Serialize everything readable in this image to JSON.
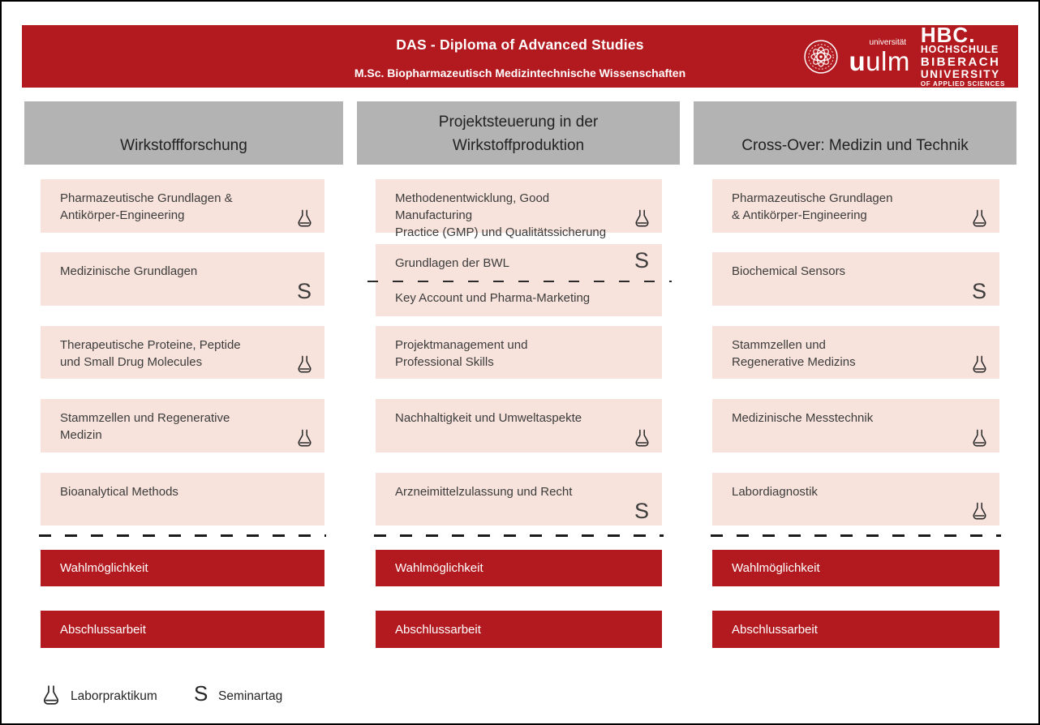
{
  "colors": {
    "red": "#b31a1f",
    "pink": "#f8e3dc",
    "gray": "#b3b3b3",
    "ink": "#3c3c3c"
  },
  "header": {
    "title": "DAS - Diploma of Advanced Studies",
    "subtitle": "M.Sc. Biopharmazeutisch Medizintechnische Wissenschaften",
    "logos": {
      "ulm_seal": "universitaet-ulm-seal",
      "ulm_label": "universität",
      "ulm_word_bold": "u",
      "ulm_word_rest": "ulm",
      "hbc_lines": [
        "HBC.",
        "HOCHSCHULE",
        "BIBERACH",
        "UNIVERSITY",
        "OF APPLIED SCIENCES"
      ]
    }
  },
  "columns": [
    {
      "title": "Wirkstoffforschung",
      "modules": [
        {
          "text": "Pharmazeutische Grundlagen &\nAntikörper-Engineering",
          "icon": "lab"
        },
        {
          "text": "Medizinische Grundlagen",
          "icon": "seminar"
        },
        {
          "text": "Therapeutische Proteine, Peptide\nund Small Drug Molecules",
          "icon": "lab"
        },
        {
          "text": "Stammzellen und Regenerative\nMedizin",
          "icon": "lab"
        },
        {
          "text": "Bioanalytical Methods",
          "icon": null
        }
      ],
      "option_label": "Wahlmöglichkeit",
      "thesis_label": "Abschlussarbeit"
    },
    {
      "title": "Projektsteuerung in der\nWirkstoffproduktion",
      "modules": [
        {
          "text": "Methodenentwicklung, Good Manufacturing\nPractice (GMP) und Qualitätssicherung",
          "icon": "lab"
        },
        {
          "split": {
            "top": "Grundlagen der BWL",
            "bottom": "Key Account und Pharma-Marketing"
          },
          "icon": "seminar",
          "tall": true
        },
        {
          "text": "Projektmanagement und\nProfessional Skills",
          "icon": null
        },
        {
          "text": "Nachhaltigkeit und Umweltaspekte",
          "icon": "lab"
        },
        {
          "text": "Arzneimittelzulassung und Recht",
          "icon": "seminar"
        }
      ],
      "option_label": "Wahlmöglichkeit",
      "thesis_label": "Abschlussarbeit"
    },
    {
      "title": "Cross-Over: Medizin und Technik",
      "modules": [
        {
          "text": "Pharmazeutische Grundlagen\n& Antikörper-Engineering",
          "icon": "lab"
        },
        {
          "text": "Biochemical Sensors",
          "icon": "seminar"
        },
        {
          "text": "Stammzellen und\nRegenerative Medizins",
          "icon": "lab"
        },
        {
          "text": "Medizinische Messtechnik",
          "icon": "lab"
        },
        {
          "text": "Labordiagnostik",
          "icon": "lab"
        }
      ],
      "option_label": "Wahlmöglichkeit",
      "thesis_label": "Abschlussarbeit"
    }
  ],
  "icons": {
    "seminar_glyph": "S",
    "lab_name": "erlenmeyer-flask"
  },
  "legend": [
    {
      "icon": "lab",
      "label": "Laborpraktikum"
    },
    {
      "icon": "seminar",
      "label": "Seminartag"
    }
  ]
}
